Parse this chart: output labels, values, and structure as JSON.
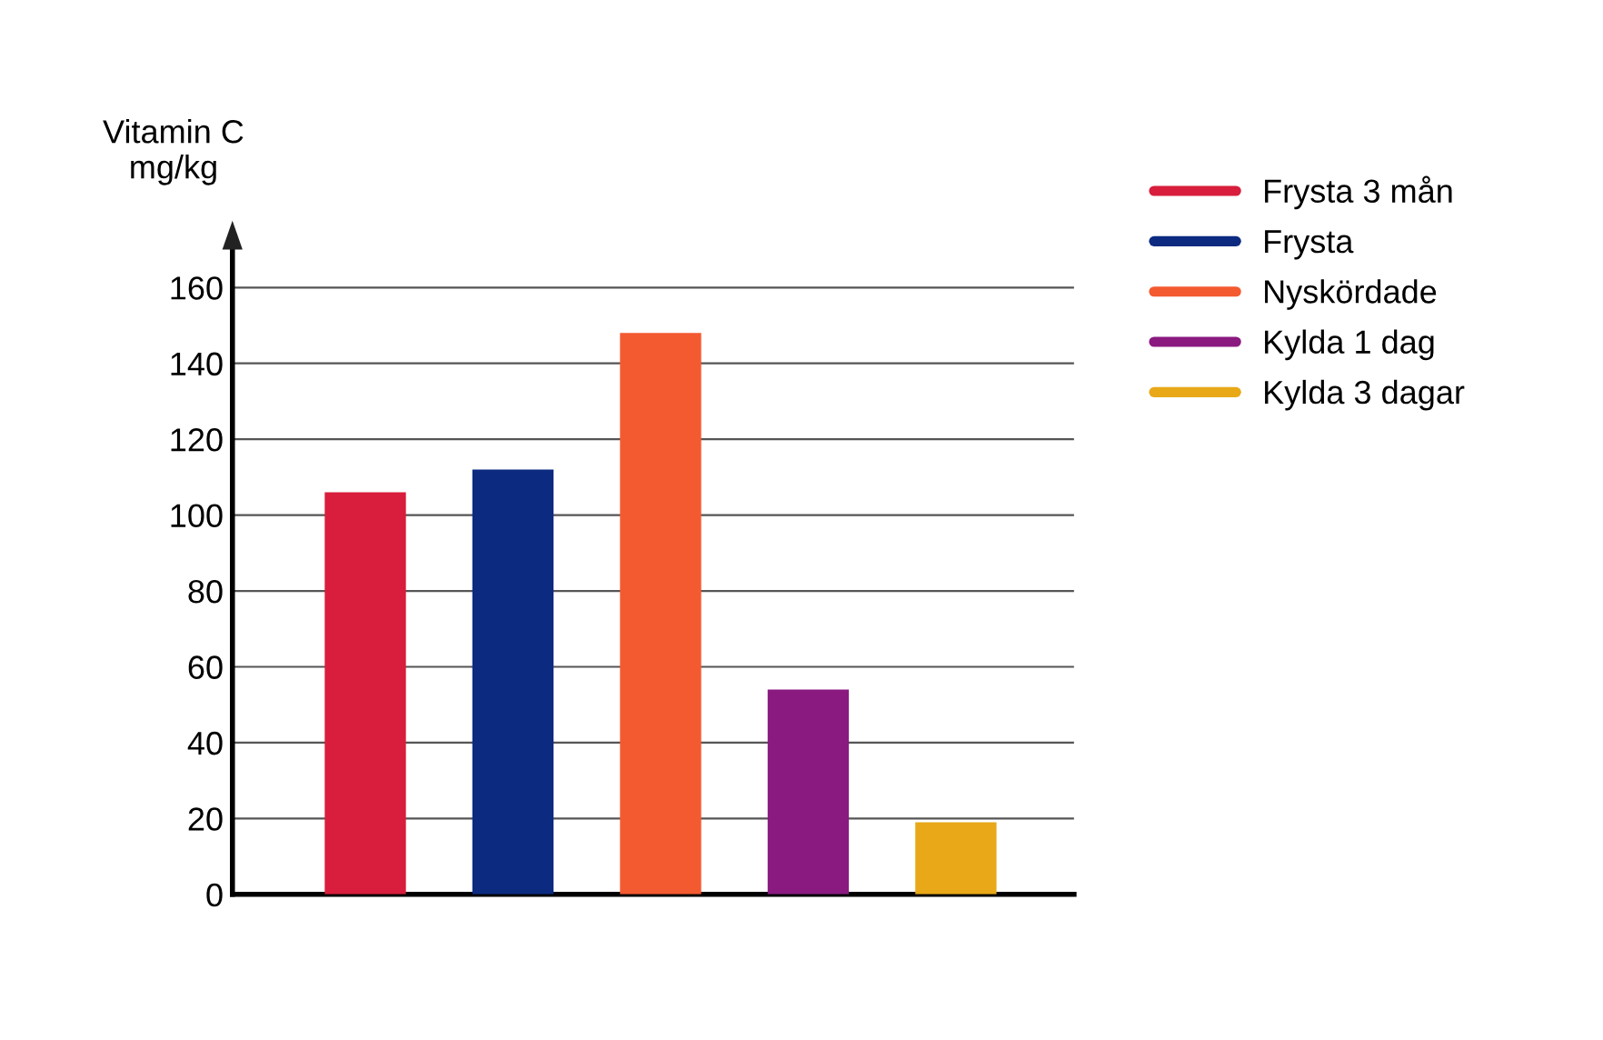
{
  "chart_data": {
    "type": "bar",
    "ylabel": "Vitamin C\nmg/kg",
    "categories": [
      null,
      null,
      null,
      null,
      null
    ],
    "series": [
      {
        "name": "Frysta 3 mån",
        "color": "#d81e3c",
        "values": [
          106,
          null,
          null,
          null,
          null
        ]
      },
      {
        "name": "Frysta",
        "color": "#0c2a80",
        "values": [
          null,
          112,
          null,
          null,
          null
        ]
      },
      {
        "name": "Nyskördade",
        "color": "#f45a30",
        "values": [
          null,
          null,
          148,
          null,
          null
        ]
      },
      {
        "name": "Kylda 1 dag",
        "color": "#8a1a80",
        "values": [
          null,
          null,
          null,
          54,
          null
        ]
      },
      {
        "name": "Kylda 3 dagar",
        "color": "#e8a818",
        "values": [
          null,
          null,
          null,
          null,
          19
        ]
      }
    ],
    "ylim": [
      0,
      170
    ],
    "yticks": [
      0,
      20,
      40,
      60,
      80,
      100,
      120,
      140,
      160
    ],
    "grid": "y",
    "legend": "top right",
    "tick_labels": "y"
  }
}
